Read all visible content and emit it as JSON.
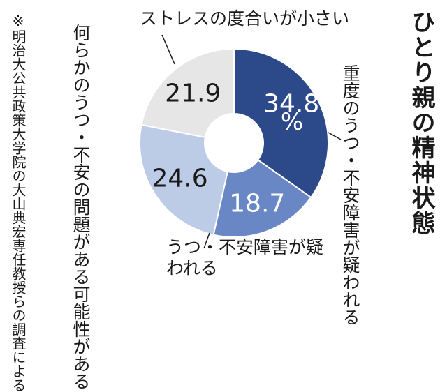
{
  "title": "ひとり親の精神状態",
  "source": "※明治大公共政策大学院の大山典宏専任教授らの調査による",
  "chart_data": {
    "type": "pie",
    "subtype": "donut",
    "unit": "%",
    "categories": [
      "重度のうつ・不安障害が疑われる",
      "うつ・不安障害が疑われる",
      "何らかのうつ・不安の問題がある可能性がある",
      "ストレスの度合いが小さい"
    ],
    "values": [
      34.8,
      18.7,
      24.6,
      21.9
    ],
    "value_labels": [
      "34.8",
      "18.7",
      "24.6",
      "21.9"
    ],
    "colors": [
      "#2c4a8a",
      "#6987c5",
      "#bccbe6",
      "#e6e6e6"
    ],
    "label_colors": [
      "#ffffff",
      "#ffffff",
      "#1a1a1a",
      "#1a1a1a"
    ]
  }
}
